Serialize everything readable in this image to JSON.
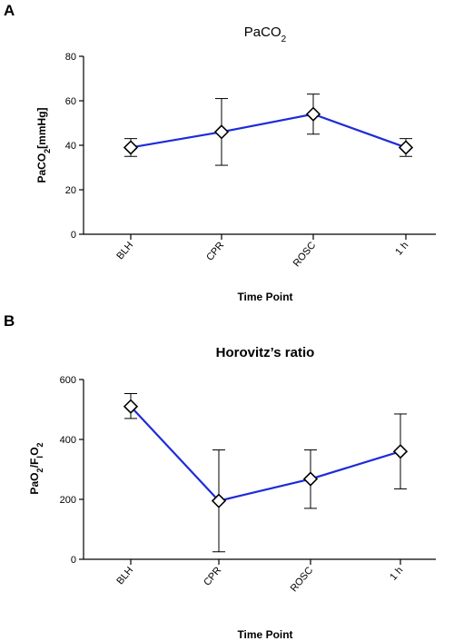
{
  "chart_data": [
    {
      "type": "line",
      "panel": "A",
      "title": "PaCO",
      "title_sub": "2",
      "xlabel": "Time Point",
      "ylabel": "PaCO",
      "ylabel_sub": "2",
      "ylabel_suffix": "[mmHg]",
      "categories": [
        "BLH",
        "CPR",
        "ROSC",
        "1 h"
      ],
      "ylim": [
        0,
        80
      ],
      "yticks": [
        0,
        20,
        40,
        60,
        80
      ],
      "series": [
        {
          "values": [
            39,
            46,
            54,
            39
          ],
          "err_low": [
            35,
            31,
            45,
            35
          ],
          "err_high": [
            43,
            61,
            63,
            43
          ],
          "color": "#1e2bd9"
        }
      ]
    },
    {
      "type": "line",
      "panel": "B",
      "title": "Horovitz’s ratio",
      "xlabel": "Time Point",
      "ylabel_parts": [
        "PaO",
        "2",
        "/F",
        "I",
        "O",
        "2"
      ],
      "categories": [
        "BLH",
        "CPR",
        "ROSC",
        "1 h"
      ],
      "ylim": [
        0,
        600
      ],
      "yticks": [
        0,
        200,
        400,
        600
      ],
      "series": [
        {
          "values": [
            510,
            195,
            268,
            360
          ],
          "err_low": [
            470,
            25,
            170,
            235
          ],
          "err_high": [
            553,
            365,
            365,
            485
          ],
          "color": "#1e2bd9"
        }
      ]
    }
  ]
}
